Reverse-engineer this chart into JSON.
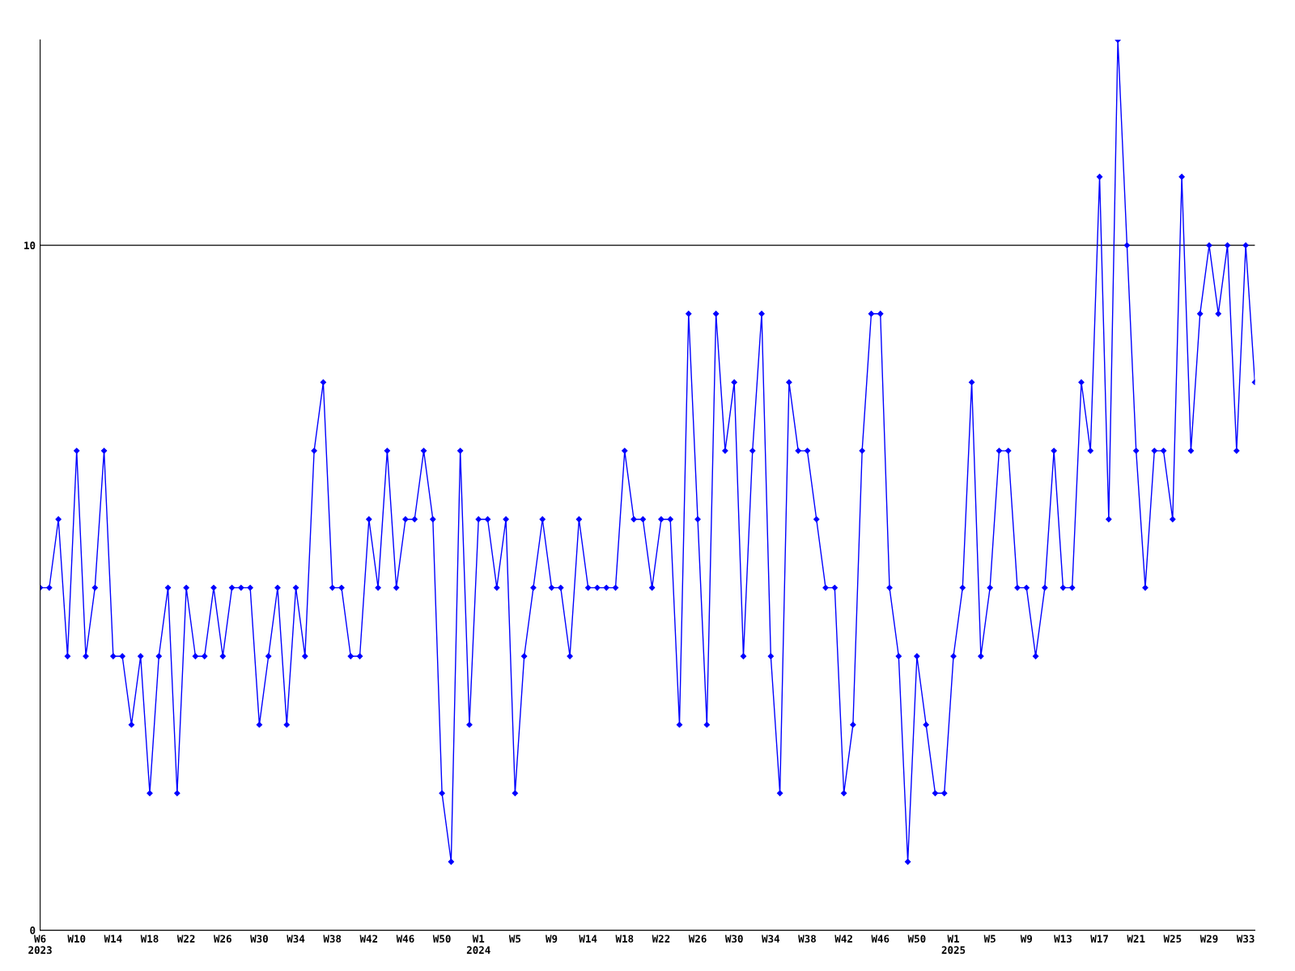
{
  "chart_data": {
    "type": "line",
    "categories": [
      "W6\n2023",
      null,
      null,
      null,
      "W10",
      null,
      null,
      null,
      "W14",
      null,
      null,
      null,
      "W18",
      null,
      null,
      null,
      "W22",
      null,
      null,
      null,
      "W26",
      null,
      null,
      null,
      "W30",
      null,
      null,
      null,
      "W34",
      null,
      null,
      null,
      "W38",
      null,
      null,
      null,
      "W42",
      null,
      null,
      null,
      "W46",
      null,
      null,
      null,
      "W50",
      null,
      null,
      null,
      "W1\n2024",
      null,
      null,
      null,
      "W5",
      null,
      null,
      null,
      "W9",
      null,
      null,
      null,
      "W14",
      null,
      null,
      null,
      "W18",
      null,
      null,
      null,
      "W22",
      null,
      null,
      null,
      "W26",
      null,
      null,
      null,
      "W30",
      null,
      null,
      null,
      "W34",
      null,
      null,
      null,
      "W38",
      null,
      null,
      null,
      "W42",
      null,
      null,
      null,
      "W46",
      null,
      null,
      null,
      "W50",
      null,
      null,
      null,
      "W1\n2025",
      null,
      null,
      null,
      "W5",
      null,
      null,
      null,
      "W9",
      null,
      null,
      null,
      "W13",
      null,
      null,
      null,
      "W17",
      null,
      null,
      null,
      "W21",
      null,
      null,
      null,
      "W25",
      null,
      null,
      null,
      "W29",
      null,
      null,
      null,
      "W33",
      null
    ],
    "series": [
      {
        "color": "#0000ff",
        "values": [
          5,
          5,
          6,
          4,
          7,
          4,
          5,
          7,
          4,
          4,
          3,
          4,
          2,
          4,
          5,
          2,
          5,
          4,
          4,
          5,
          4,
          5,
          5,
          5,
          3,
          4,
          5,
          3,
          5,
          4,
          7,
          8,
          5,
          5,
          4,
          4,
          6,
          5,
          7,
          5,
          6,
          6,
          7,
          6,
          2,
          1,
          7,
          3,
          6,
          6,
          5,
          6,
          2,
          4,
          5,
          6,
          5,
          5,
          4,
          6,
          5,
          5,
          5,
          5,
          7,
          6,
          6,
          5,
          6,
          6,
          3,
          9,
          6,
          3,
          9,
          7,
          8,
          4,
          7,
          9,
          4,
          2,
          8,
          7,
          7,
          6,
          5,
          5,
          2,
          3,
          7,
          9,
          9,
          5,
          4,
          1,
          4,
          3,
          2,
          2,
          4,
          5,
          8,
          4,
          5,
          7,
          7,
          5,
          5,
          4,
          5,
          7,
          5,
          5,
          8,
          7,
          11,
          6,
          13,
          10,
          7,
          5,
          7,
          7,
          6,
          11,
          7,
          9,
          10,
          9,
          10,
          7,
          10,
          8
        ]
      }
    ],
    "ylim": [
      0,
      13
    ],
    "yticks": [
      0,
      10
    ],
    "grid": "y",
    "marker": "diamond",
    "line_style": "solid"
  }
}
